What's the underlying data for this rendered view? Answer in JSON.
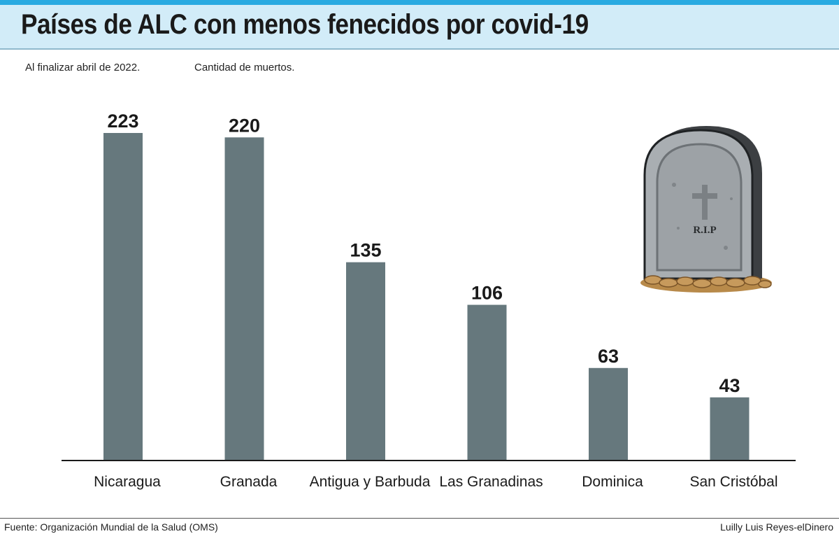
{
  "header": {
    "title": "Países de ALC con menos fenecidos por covid-19",
    "subtitle_left": "Al finalizar abril de 2022.",
    "subtitle_right": "Cantidad de muertos."
  },
  "footer": {
    "source": "Fuente: Organización Mundial de la Salud (OMS)",
    "credit": "Luilly Luis Reyes-elDinero"
  },
  "illustration": {
    "tombstone_text": "R.I.P",
    "icon": "tombstone-icon"
  },
  "colors": {
    "accent": "#29aae1",
    "title_band": "#d2ecf8",
    "bar": "#66787d"
  },
  "chart_data": {
    "type": "bar",
    "categories": [
      "Nicaragua",
      "Granada",
      "Antigua y Barbuda",
      "Las Granadinas",
      "Dominica",
      "San Cristóbal"
    ],
    "values": [
      223,
      220,
      135,
      106,
      63,
      43
    ],
    "title": "Países de ALC con menos fenecidos por covid-19",
    "xlabel": "",
    "ylabel": "",
    "ylim": [
      0,
      250
    ],
    "grid": false,
    "legend": "none"
  }
}
